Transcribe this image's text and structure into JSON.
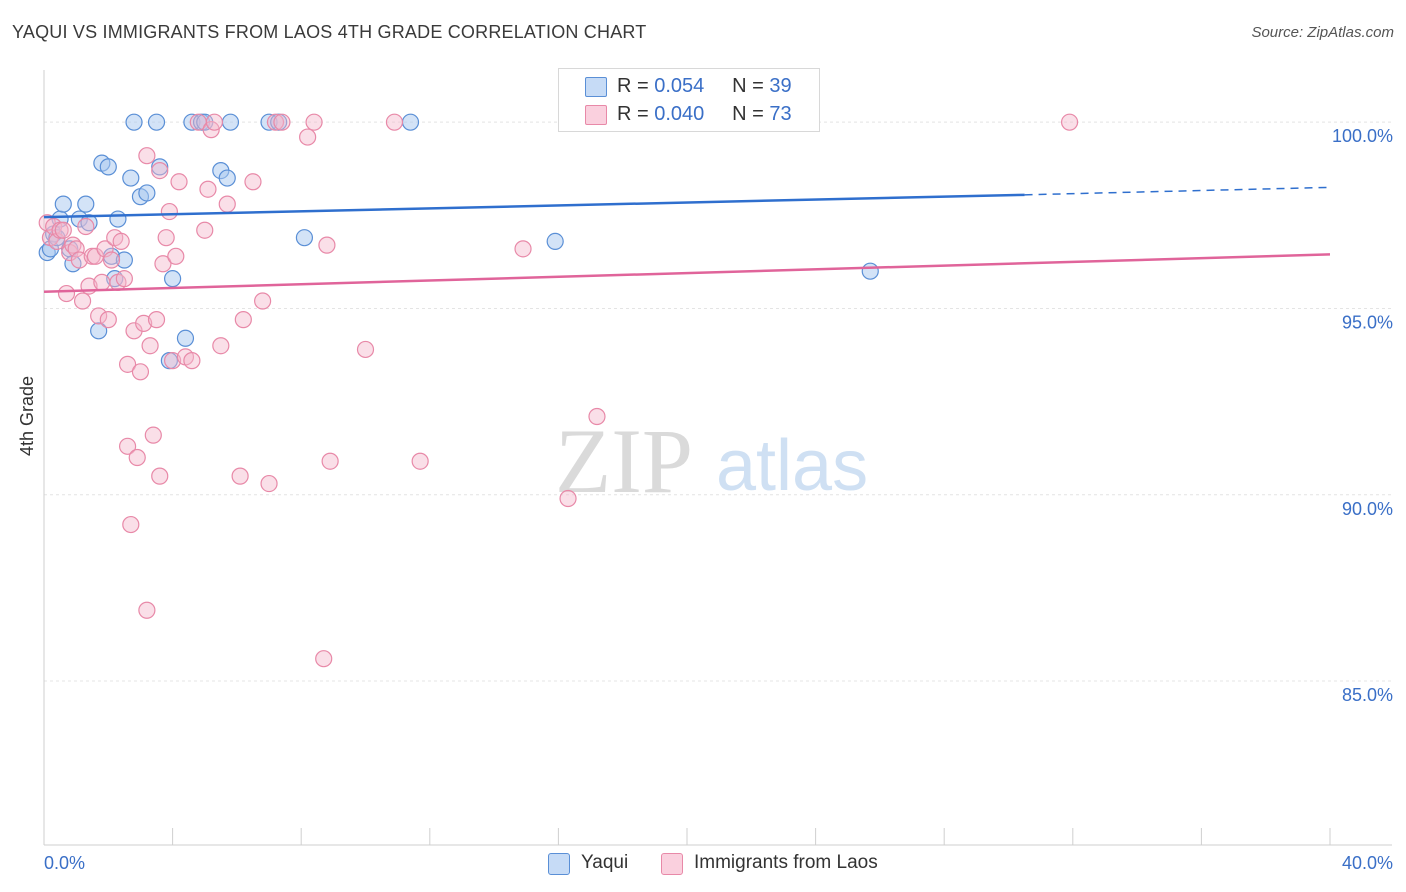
{
  "title": "YAQUI VS IMMIGRANTS FROM LAOS 4TH GRADE CORRELATION CHART",
  "source": "Source: ZipAtlas.com",
  "watermark": {
    "zip": "ZIP",
    "atlas": "atlas"
  },
  "colors": {
    "blue_fill": "#a8c8f0",
    "blue_stroke": "#5a8fd6",
    "blue_line": "#2f6fce",
    "pink_fill": "#f5b8cb",
    "pink_stroke": "#e889a8",
    "pink_line": "#e0649a",
    "axis_text": "#3a6fc7",
    "grid": "#e4e4e4"
  },
  "legend": {
    "rows": [
      {
        "r_label": "R =",
        "r_value": "0.054",
        "n_label": "N =",
        "n_value": "39"
      },
      {
        "r_label": "R =",
        "r_value": "0.040",
        "n_label": "N =",
        "n_value": "73"
      }
    ]
  },
  "bottom_legend": {
    "yaqui": "Yaqui",
    "laos": "Immigrants from Laos"
  },
  "chart_data": {
    "type": "scatter",
    "title": "YAQUI VS IMMIGRANTS FROM LAOS 4TH GRADE CORRELATION CHART",
    "xlabel": "",
    "ylabel": "4th Grade",
    "xlim": [
      0,
      40
    ],
    "ylim": [
      80.6,
      101.4
    ],
    "x_tick_labels": [
      "0.0%",
      "40.0%"
    ],
    "y_ticks": [
      85,
      90,
      95,
      100
    ],
    "y_tick_labels": [
      "85.0%",
      "90.0%",
      "95.0%",
      "100.0%"
    ],
    "series": [
      {
        "name": "Yaqui",
        "r": 0.054,
        "n": 39,
        "trend": {
          "x0": 0,
          "y0": 97.45,
          "x1": 30.5,
          "y1": 98.05,
          "dash_to_x": 40,
          "dash_to_y": 98.25
        },
        "points": [
          [
            0.1,
            96.5
          ],
          [
            0.2,
            96.6
          ],
          [
            0.3,
            97.0
          ],
          [
            0.5,
            97.4
          ],
          [
            0.6,
            97.8
          ],
          [
            0.8,
            96.6
          ],
          [
            0.9,
            96.2
          ],
          [
            1.1,
            97.4
          ],
          [
            1.3,
            97.8
          ],
          [
            1.4,
            97.3
          ],
          [
            1.7,
            94.4
          ],
          [
            1.8,
            98.9
          ],
          [
            2.0,
            98.8
          ],
          [
            2.1,
            96.4
          ],
          [
            2.2,
            95.8
          ],
          [
            2.3,
            97.4
          ],
          [
            2.5,
            96.3
          ],
          [
            2.7,
            98.5
          ],
          [
            2.8,
            100.0
          ],
          [
            3.0,
            98.0
          ],
          [
            3.2,
            98.1
          ],
          [
            3.5,
            100.0
          ],
          [
            3.6,
            98.8
          ],
          [
            3.9,
            93.6
          ],
          [
            4.0,
            95.8
          ],
          [
            4.4,
            94.2
          ],
          [
            4.6,
            100.0
          ],
          [
            4.9,
            100.0
          ],
          [
            5.0,
            100.0
          ],
          [
            5.5,
            98.7
          ],
          [
            5.7,
            98.5
          ],
          [
            5.8,
            100.0
          ],
          [
            7.0,
            100.0
          ],
          [
            7.3,
            100.0
          ],
          [
            8.1,
            96.9
          ],
          [
            11.4,
            100.0
          ],
          [
            15.9,
            96.8
          ],
          [
            25.7,
            96.0
          ],
          [
            0.4,
            96.9
          ]
        ]
      },
      {
        "name": "Immigrants from Laos",
        "r": 0.04,
        "n": 73,
        "trend": {
          "x0": 0,
          "y0": 95.45,
          "x1": 40,
          "y1": 96.45
        },
        "points": [
          [
            0.1,
            97.3
          ],
          [
            0.2,
            96.9
          ],
          [
            0.3,
            97.2
          ],
          [
            0.4,
            96.8
          ],
          [
            0.5,
            97.1
          ],
          [
            0.6,
            97.1
          ],
          [
            0.7,
            95.4
          ],
          [
            0.8,
            96.5
          ],
          [
            0.9,
            96.7
          ],
          [
            1.0,
            96.6
          ],
          [
            1.1,
            96.3
          ],
          [
            1.2,
            95.2
          ],
          [
            1.4,
            95.6
          ],
          [
            1.5,
            96.4
          ],
          [
            1.6,
            96.4
          ],
          [
            1.7,
            94.8
          ],
          [
            1.8,
            95.7
          ],
          [
            1.9,
            96.6
          ],
          [
            2.0,
            94.7
          ],
          [
            2.1,
            96.3
          ],
          [
            2.2,
            96.9
          ],
          [
            2.3,
            95.7
          ],
          [
            2.4,
            96.8
          ],
          [
            2.5,
            95.8
          ],
          [
            2.6,
            91.3
          ],
          [
            2.6,
            93.5
          ],
          [
            2.7,
            89.2
          ],
          [
            2.8,
            94.4
          ],
          [
            2.9,
            91.0
          ],
          [
            3.0,
            93.3
          ],
          [
            3.1,
            94.6
          ],
          [
            3.2,
            99.1
          ],
          [
            3.2,
            86.9
          ],
          [
            3.3,
            94.0
          ],
          [
            3.4,
            91.6
          ],
          [
            3.5,
            94.7
          ],
          [
            3.6,
            98.7
          ],
          [
            3.6,
            90.5
          ],
          [
            3.7,
            96.2
          ],
          [
            3.8,
            96.9
          ],
          [
            3.9,
            97.6
          ],
          [
            4.0,
            93.6
          ],
          [
            4.1,
            96.4
          ],
          [
            4.2,
            98.4
          ],
          [
            4.4,
            93.7
          ],
          [
            4.6,
            93.6
          ],
          [
            4.8,
            100.0
          ],
          [
            5.0,
            97.1
          ],
          [
            5.1,
            98.2
          ],
          [
            5.2,
            99.8
          ],
          [
            5.3,
            100.0
          ],
          [
            5.5,
            94.0
          ],
          [
            5.7,
            97.8
          ],
          [
            6.1,
            90.5
          ],
          [
            6.2,
            94.7
          ],
          [
            6.5,
            98.4
          ],
          [
            6.8,
            95.2
          ],
          [
            7.0,
            90.3
          ],
          [
            7.2,
            100.0
          ],
          [
            7.4,
            100.0
          ],
          [
            8.2,
            99.6
          ],
          [
            8.4,
            100.0
          ],
          [
            8.7,
            85.6
          ],
          [
            8.8,
            96.7
          ],
          [
            8.9,
            90.9
          ],
          [
            10.0,
            93.9
          ],
          [
            10.9,
            100.0
          ],
          [
            11.7,
            90.9
          ],
          [
            14.9,
            96.6
          ],
          [
            16.3,
            89.9
          ],
          [
            17.2,
            92.1
          ],
          [
            31.9,
            100.0
          ],
          [
            1.3,
            97.2
          ]
        ]
      }
    ]
  }
}
